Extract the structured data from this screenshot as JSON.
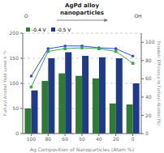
{
  "chart_data": {
    "type": "bar",
    "title": "AgPd alloy\nnanoparticles",
    "annotations": [
      "O",
      "OH"
    ],
    "categories": [
      "100",
      "80",
      "60",
      "50",
      "40",
      "20",
      "0"
    ],
    "x_label": "Ag Composition of Nanoparticles (Atom %)",
    "y_label": "Furfuryl Alcohol Yield (μmol h⁻¹)",
    "y2_label": "Faradaic Efficiency to Furfuryl Alcohol (%)",
    "ylim": [
      0,
      200
    ],
    "yticks": [
      0,
      50,
      100,
      150,
      200
    ],
    "y2lim": [
      0,
      110
    ],
    "y2ticks": [
      0,
      20,
      40,
      60,
      80,
      100
    ],
    "grid": true,
    "legend": "upper left",
    "series": [
      {
        "name": "-0.4 V",
        "type": "bar",
        "color": "#2e7b33",
        "values": [
          50,
          105,
          120,
          115,
          110,
          60,
          58
        ]
      },
      {
        "name": "-0.5 V",
        "type": "bar",
        "color": "#1f3a8a",
        "values": [
          86,
          150,
          162,
          155,
          152,
          150,
          100
        ]
      },
      {
        "type": "line",
        "axis": "y2",
        "color": "#2b4fd4",
        "marker": "circle",
        "values": [
          63,
          93,
          96,
          96,
          94,
          93,
          85
        ]
      },
      {
        "type": "line",
        "axis": "y2",
        "color": "#3aaa45",
        "marker": "square",
        "values": [
          51,
          90,
          93,
          94,
          93,
          90,
          77
        ]
      }
    ]
  }
}
